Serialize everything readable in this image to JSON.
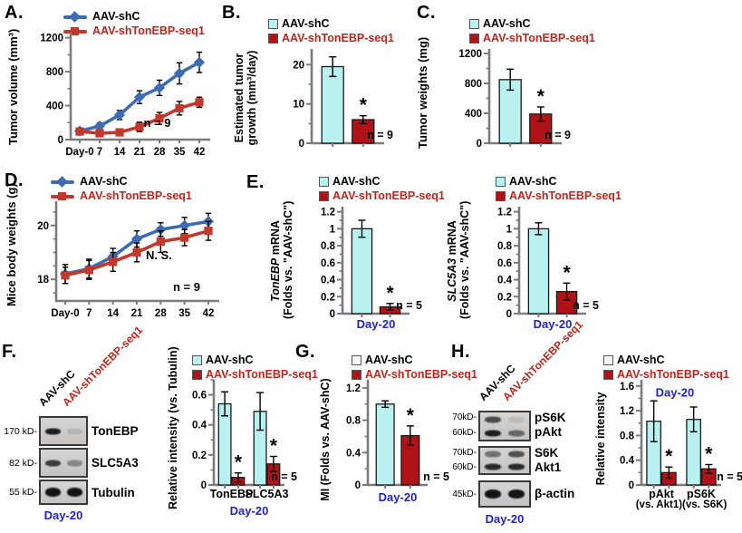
{
  "colors": {
    "cyan": "#b8f1ef",
    "darkred": "#b11217",
    "blue": "#3d6cb3",
    "red": "#c0392e",
    "axis": "#7b7b7b",
    "day_blue": "#2222cc",
    "legend_red": "#c0241a",
    "white_swatch": "#f7f7f7",
    "bar_stroke": "#1a1a1a"
  },
  "legend_labels": {
    "control": "AAV-shC",
    "knockdown": "AAV-shTonEBP-seq1"
  },
  "panels": {
    "A": {
      "letter": "A."
    },
    "B": {
      "letter": "B."
    },
    "C": {
      "letter": "C."
    },
    "D": {
      "letter": "D."
    },
    "E": {
      "letter": "E."
    },
    "F": {
      "letter": "F."
    },
    "G": {
      "letter": "G."
    },
    "H": {
      "letter": "H."
    }
  },
  "ylabels": {
    "A": "Tumor volume (mm³)",
    "B1": "Estimated tumor",
    "B2": "growth (mm³/day)",
    "C": "Tumor weights (mg)",
    "D": "Mice body weights (g)",
    "E1_italic": "TonEBP",
    "E1_rest": " mRNA",
    "E2_italic": "SLC5A3",
    "E2_rest": " mRNA",
    "E_line2": "(Folds vs. \"AAV-shC\")",
    "F": "Relative intensity (vs. Tubulin)",
    "G": "MI (Folds vs. AAV-shC)",
    "H": "Relative intensity"
  },
  "xlabels": {
    "day20": "Day-20",
    "H_sub": "(vs. Akt1)(vs. S6K)"
  },
  "chart_data": [
    {
      "panel": "A",
      "type": "line",
      "ylabel": "Tumor volume (mm³)",
      "ylim": [
        0,
        1260
      ],
      "yticks": [
        0,
        400,
        800,
        1200
      ],
      "yminor": 200,
      "xticklabels": [
        "Day-0",
        "7",
        "14",
        "21",
        "28",
        "35",
        "42"
      ],
      "legend_position": "top-left",
      "series": [
        {
          "name": "AAV-shC",
          "color": "blue",
          "marker": "diamond",
          "values": [
            100,
            160,
            290,
            500,
            610,
            780,
            910
          ],
          "errors": [
            25,
            35,
            55,
            75,
            90,
            125,
            120
          ]
        },
        {
          "name": "AAV-shTonEBP-seq1",
          "color": "red",
          "marker": "square",
          "values": [
            95,
            75,
            85,
            150,
            250,
            370,
            440
          ],
          "errors": [
            25,
            20,
            25,
            55,
            70,
            80,
            60
          ]
        }
      ],
      "annotations": [
        {
          "text": "n = 9",
          "fx": 0.62,
          "fy": 0.88
        }
      ]
    },
    {
      "panel": "B",
      "type": "bar",
      "ylabel": "Estimated tumor growth (mm³/day)",
      "ylim": [
        0,
        24
      ],
      "yticks": [
        0,
        10,
        20
      ],
      "yminor": 5,
      "categories": [
        ""
      ],
      "series": [
        {
          "name": "AAV-shC",
          "fill": "cyan",
          "values": [
            19.5
          ],
          "errors": [
            2.5
          ],
          "sig": [
            ""
          ]
        },
        {
          "name": "AAV-shTonEBP-seq1",
          "fill": "darkred",
          "values": [
            6
          ],
          "errors": [
            1
          ],
          "sig": [
            "*"
          ]
        }
      ],
      "note": "n = 9"
    },
    {
      "panel": "C",
      "type": "bar",
      "ylabel": "Tumor weights (mg)",
      "ylim": [
        0,
        1260
      ],
      "yticks": [
        0,
        400,
        800,
        1200
      ],
      "yminor": 200,
      "categories": [
        ""
      ],
      "series": [
        {
          "name": "AAV-shC",
          "fill": "cyan",
          "values": [
            850
          ],
          "errors": [
            140
          ],
          "sig": [
            ""
          ]
        },
        {
          "name": "AAV-shTonEBP-seq1",
          "fill": "darkred",
          "values": [
            390
          ],
          "errors": [
            95
          ],
          "sig": [
            "*"
          ]
        }
      ],
      "note": "n = 9"
    },
    {
      "panel": "D",
      "type": "line",
      "ylabel": "Mice body weights (g)",
      "ylim": [
        17.2,
        20.9
      ],
      "yticks": [
        18,
        20
      ],
      "yminor": 0.5,
      "xticklabels": [
        "Day-0",
        "7",
        "14",
        "21",
        "28",
        "35",
        "42"
      ],
      "series": [
        {
          "name": "AAV-shC",
          "color": "blue",
          "marker": "diamond",
          "values": [
            18.2,
            18.4,
            18.85,
            19.5,
            19.85,
            20.0,
            20.15
          ],
          "errors": [
            0.35,
            0.35,
            0.3,
            0.3,
            0.25,
            0.3,
            0.3
          ]
        },
        {
          "name": "AAV-shTonEBP-seq1",
          "color": "red",
          "marker": "square",
          "values": [
            18.15,
            18.35,
            18.65,
            19.0,
            19.4,
            19.55,
            19.8
          ],
          "errors": [
            0.3,
            0.35,
            0.35,
            0.35,
            0.4,
            0.3,
            0.35
          ]
        }
      ],
      "annotations": [
        {
          "text": "N. S.",
          "fx": 0.63,
          "fy": 0.58
        },
        {
          "text": "n = 9",
          "fx": 0.8,
          "fy": 0.9
        }
      ]
    },
    {
      "panel": "E1",
      "type": "bar",
      "ylabel": "TonEBP mRNA (Folds vs. \"AAV-shC\")",
      "ylim": [
        0,
        1.26
      ],
      "yticks": [
        0,
        0.2,
        0.4,
        0.6,
        0.8,
        1,
        1.2
      ],
      "yminor": 0.1,
      "categories": [
        ""
      ],
      "xlabel": "Day-20",
      "series": [
        {
          "name": "AAV-shC",
          "fill": "cyan",
          "values": [
            1.0
          ],
          "errors": [
            0.1
          ],
          "sig": [
            ""
          ]
        },
        {
          "name": "AAV-shTonEBP-seq1",
          "fill": "darkred",
          "values": [
            0.08
          ],
          "errors": [
            0.04
          ],
          "sig": [
            "*"
          ]
        }
      ],
      "note": "n = 5"
    },
    {
      "panel": "E2",
      "type": "bar",
      "ylabel": "SLC5A3 mRNA (Folds vs. \"AAV-shC\")",
      "ylim": [
        0,
        1.26
      ],
      "yticks": [
        0,
        0.2,
        0.4,
        0.6,
        0.8,
        1,
        1.2
      ],
      "yminor": 0.1,
      "categories": [
        ""
      ],
      "xlabel": "Day-20",
      "series": [
        {
          "name": "AAV-shC",
          "fill": "cyan",
          "values": [
            1.0
          ],
          "errors": [
            0.07
          ],
          "sig": [
            ""
          ]
        },
        {
          "name": "AAV-shTonEBP-seq1",
          "fill": "darkred",
          "values": [
            0.26
          ],
          "errors": [
            0.1
          ],
          "sig": [
            "*"
          ]
        }
      ],
      "note": "n = 5"
    },
    {
      "panel": "F",
      "type": "bar",
      "ylabel": "Relative intensity (vs. Tubulin)",
      "ylim": [
        0,
        0.7
      ],
      "yticks": [
        0,
        0.2,
        0.4,
        0.6
      ],
      "yminor": 0.1,
      "categories": [
        "TonEBP",
        "SLC5A3"
      ],
      "xlabel": "Day-20",
      "series": [
        {
          "name": "AAV-shC",
          "fill": "cyan",
          "values": [
            0.54,
            0.49
          ],
          "errors": [
            0.08,
            0.125
          ],
          "sig": [
            "",
            ""
          ]
        },
        {
          "name": "AAV-shTonEBP-seq1",
          "fill": "darkred",
          "values": [
            0.05,
            0.14
          ],
          "errors": [
            0.03,
            0.05
          ],
          "sig": [
            "*",
            "*"
          ]
        }
      ],
      "note": "n = 5"
    },
    {
      "panel": "G",
      "type": "bar",
      "ylabel": "MI (Folds vs. AAV-shC)",
      "ylim": [
        0,
        1.3
      ],
      "yticks": [
        0,
        0.4,
        0.8,
        1.2
      ],
      "yminor": 0.2,
      "categories": [
        ""
      ],
      "xlabel": "Day-20",
      "series": [
        {
          "name": "AAV-shC",
          "fill": "cyan",
          "values": [
            1.0
          ],
          "errors": [
            0.04
          ],
          "sig": [
            ""
          ]
        },
        {
          "name": "AAV-shTonEBP-seq1",
          "fill": "darkred",
          "values": [
            0.61
          ],
          "errors": [
            0.12
          ],
          "sig": [
            "*"
          ]
        }
      ],
      "note": "n = 5"
    },
    {
      "panel": "H",
      "type": "bar",
      "ylabel": "Relative intensity",
      "ylim": [
        0,
        1.7
      ],
      "yticks": [
        0,
        0.4,
        0.8,
        1.2,
        1.6
      ],
      "yminor": 0.2,
      "categories": [
        "pAkt",
        "pS6K"
      ],
      "category_sublabel": "(vs. Akt1)(vs. S6K)",
      "series": [
        {
          "name": "AAV-shC",
          "fill": "cyan",
          "values": [
            1.03,
            1.06
          ],
          "errors": [
            0.33,
            0.2
          ],
          "sig": [
            "",
            ""
          ]
        },
        {
          "name": "AAV-shTonEBP-seq1",
          "fill": "darkred",
          "values": [
            0.2,
            0.26
          ],
          "errors": [
            0.09,
            0.07
          ],
          "sig": [
            "*",
            "*"
          ]
        }
      ],
      "note": "n = 5",
      "annotations": [
        {
          "text": "Day-20",
          "fx": 0.42,
          "fy": 0.16,
          "color": "day_blue"
        }
      ]
    }
  ],
  "blots": {
    "F": {
      "lanes": [
        "AAV-shC",
        "AAV-shTonEBP-seq1"
      ],
      "groups": [
        {
          "rows": [
            {
              "marker": "170 kD-",
              "label": "TonEBP",
              "intensities": [
                0.95,
                0.12
              ]
            }
          ]
        },
        {
          "rows": [
            {
              "marker": "82 kD-",
              "label": "SLC5A3",
              "intensities": [
                0.78,
                0.38
              ]
            }
          ]
        },
        {
          "rows": [
            {
              "marker": "55 kD-",
              "label": "Tubulin",
              "intensities": [
                1,
                1
              ],
              "thick": true
            }
          ]
        }
      ],
      "xlabel": "Day-20"
    },
    "H": {
      "lanes": [
        "AAV-shC",
        "AAV-shTonEBP-seq1"
      ],
      "groups": [
        {
          "rows": [
            {
              "marker": "70kD-",
              "label": "pS6K",
              "intensities": [
                0.7,
                0.1
              ]
            },
            {
              "marker": "60kD-",
              "label": "pAkt",
              "intensities": [
                0.95,
                0.55
              ]
            }
          ]
        },
        {
          "rows": [
            {
              "marker": "70kD-",
              "label": "S6K",
              "intensities": [
                0.5,
                0.68
              ]
            },
            {
              "marker": "60kD-",
              "label": "Akt1",
              "intensities": [
                0.88,
                0.88
              ]
            }
          ]
        },
        {
          "rows": [
            {
              "marker": "45kD-",
              "label": "β-actin",
              "intensities": [
                1,
                1
              ],
              "thick": true
            }
          ]
        }
      ],
      "xlabel": "Day-20"
    }
  }
}
